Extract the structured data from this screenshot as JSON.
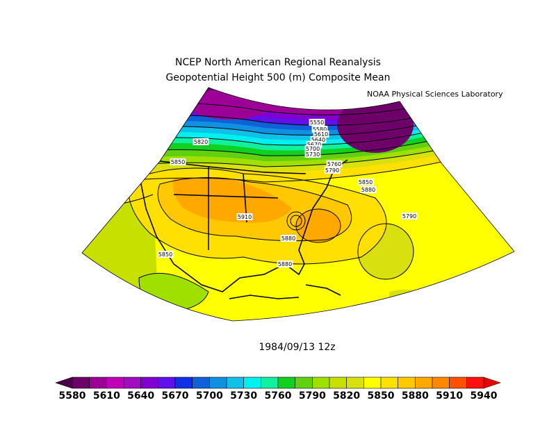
{
  "title_line1": "NCEP North American Regional Reanalysis",
  "title_line2": "Geopotential Height 500 (m) Composite Mean",
  "credit": "NOAA Physical Sciences Laboratory",
  "date_label": "1984/09/13 12z",
  "colorbar": {
    "colors": [
      "#4a0046",
      "#6e0069",
      "#9c0096",
      "#c000b8",
      "#a00cc0",
      "#8000d0",
      "#6010e8",
      "#1030e8",
      "#1060d8",
      "#1090e0",
      "#10c0e8",
      "#00f0f0",
      "#10f0a0",
      "#10d020",
      "#60d010",
      "#a0e000",
      "#c8e000",
      "#d8e010",
      "#ffff00",
      "#ffe000",
      "#ffc800",
      "#ffa800",
      "#ff8800",
      "#ff5000",
      "#ff1010",
      "#e80000"
    ],
    "ticks": [
      "5580",
      "5610",
      "5640",
      "5670",
      "5700",
      "5730",
      "5760",
      "5790",
      "5820",
      "5850",
      "5880",
      "5910",
      "5940"
    ]
  },
  "contour_labels": [
    {
      "text": "5550"
    },
    {
      "text": "5580"
    },
    {
      "text": "5610"
    },
    {
      "text": "5640"
    },
    {
      "text": "5670"
    },
    {
      "text": "5700"
    },
    {
      "text": "5730"
    },
    {
      "text": "5760"
    },
    {
      "text": "5790"
    },
    {
      "text": "5820"
    },
    {
      "text": "5850"
    },
    {
      "text": "5850"
    },
    {
      "text": "5880"
    },
    {
      "text": "5880"
    },
    {
      "text": "5880"
    },
    {
      "text": "5910"
    },
    {
      "text": "5850"
    },
    {
      "text": "5790"
    }
  ]
}
